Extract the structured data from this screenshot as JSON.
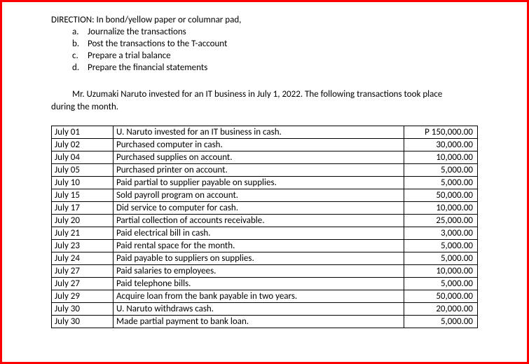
{
  "direction": {
    "label": "DIRECTION: In bond/yellow paper or columnar pad,",
    "items": [
      {
        "marker": "a.",
        "text": "Journalize the transactions"
      },
      {
        "marker": "b.",
        "text": "Post the transactions to the T-account"
      },
      {
        "marker": "c.",
        "text": "Prepare a trial balance"
      },
      {
        "marker": "d.",
        "text": "Prepare the financial statements"
      }
    ]
  },
  "intro": {
    "line1": "Mr. Uzumaki Naruto invested for an IT business in July 1, 2022. The following transactions took place",
    "line2": "during the month."
  },
  "transactions": {
    "rows": [
      {
        "date": "July 01",
        "desc": "U. Naruto invested for an IT business in cash.",
        "amount": "P 150,000.00"
      },
      {
        "date": "July 02",
        "desc": "Purchased computer in cash.",
        "amount": "30,000.00"
      },
      {
        "date": "July 04",
        "desc": "Purchased supplies on account.",
        "amount": "10,000.00"
      },
      {
        "date": "July 05",
        "desc": "Purchased printer on account.",
        "amount": "5,000.00"
      },
      {
        "date": "July 10",
        "desc": "Paid partial to supplier payable on supplies.",
        "amount": "5,000.00"
      },
      {
        "date": "July 15",
        "desc": "Sold payroll program on account.",
        "amount": "50,000.00"
      },
      {
        "date": "July 17",
        "desc": "Did service to computer for cash.",
        "amount": "10,000.00"
      },
      {
        "date": "July 20",
        "desc": "Partial collection of accounts receivable.",
        "amount": "25,000.00"
      },
      {
        "date": "July 21",
        "desc": "Paid electrical bill in cash.",
        "amount": "3,000.00"
      },
      {
        "date": "July 23",
        "desc": "Paid rental space for the month.",
        "amount": "5,000.00"
      },
      {
        "date": "July 24",
        "desc": "Paid payable to suppliers on supplies.",
        "amount": "5,000.00"
      },
      {
        "date": "July 27",
        "desc": "Paid salaries to employees.",
        "amount": "10,000.00"
      },
      {
        "date": "July 27",
        "desc": "Paid telephone bills.",
        "amount": "5,000.00"
      },
      {
        "date": "July 29",
        "desc": "Acquire loan from the bank payable in two years.",
        "amount": "50,000.00"
      },
      {
        "date": "July 30",
        "desc": "U. Naruto withdraws cash.",
        "amount": "20,000.00"
      },
      {
        "date": "July 30",
        "desc": "Made partial payment to bank loan.",
        "amount": "5,000.00"
      }
    ]
  }
}
